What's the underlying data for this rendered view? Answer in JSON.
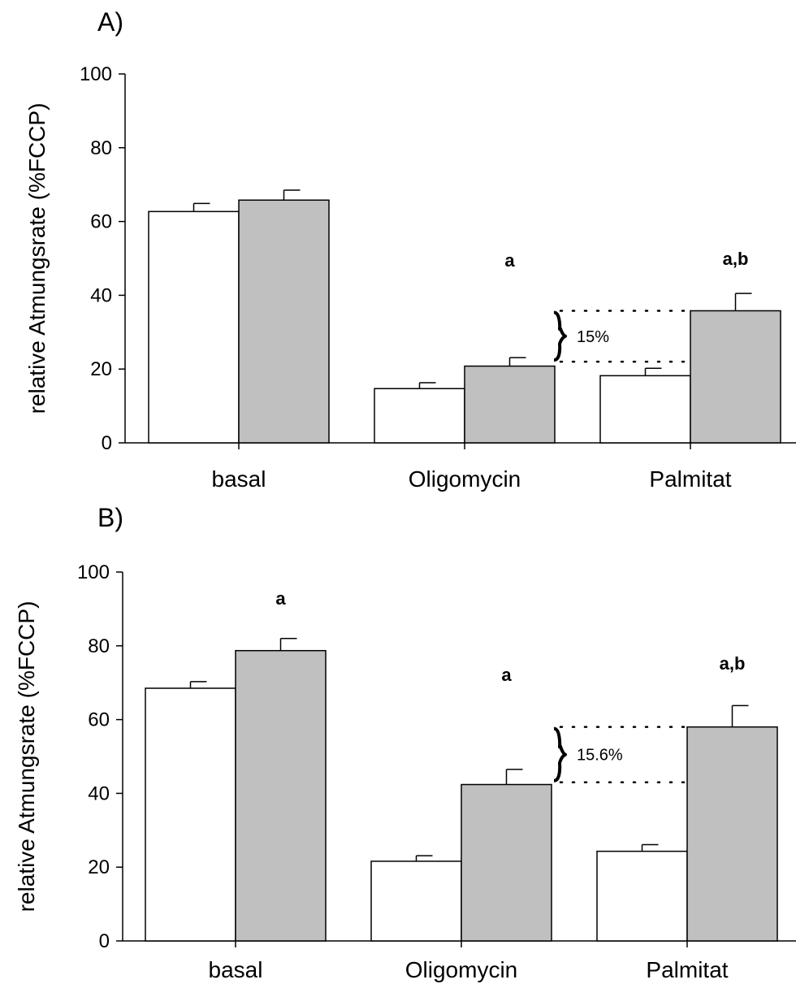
{
  "chart_data": [
    {
      "type": "bar",
      "panel_label": "A)",
      "categories": [
        "basal",
        "Oligomycin",
        "Palmitat"
      ],
      "ylabel": "relative Atmungsrate (%FCCP)",
      "ylim": [
        0,
        100
      ],
      "yticks": [
        "0",
        "20",
        "40",
        "60",
        "80",
        "100"
      ],
      "series": [
        {
          "color": "#ffffff",
          "values": [
            62.7,
            14.7,
            18.2
          ],
          "errors": [
            2.2,
            1.6,
            2.0
          ]
        },
        {
          "color": "#c0c0c0",
          "values": [
            65.8,
            20.8,
            35.8
          ],
          "errors": [
            2.7,
            2.3,
            4.7
          ]
        }
      ],
      "annotations": [
        {
          "category": "Oligomycin",
          "text": "a"
        },
        {
          "category": "Palmitat",
          "text": "a,b"
        }
      ],
      "difference_bracket": {
        "label": "15%",
        "from_value": 22.0,
        "to_value": 35.8
      }
    },
    {
      "type": "bar",
      "panel_label": "B)",
      "categories": [
        "basal",
        "Oligomycin",
        "Palmitat"
      ],
      "ylabel": "relative Atmungsrate (%FCCP)",
      "ylim": [
        0,
        100
      ],
      "yticks": [
        "0",
        "20",
        "40",
        "60",
        "80",
        "100"
      ],
      "series": [
        {
          "color": "#ffffff",
          "values": [
            68.5,
            21.6,
            24.3
          ],
          "errors": [
            1.8,
            1.5,
            1.8
          ]
        },
        {
          "color": "#c0c0c0",
          "values": [
            78.7,
            42.4,
            58.0
          ],
          "errors": [
            3.3,
            4.1,
            5.8
          ]
        }
      ],
      "annotations": [
        {
          "category": "basal",
          "text": "a"
        },
        {
          "category": "Oligomycin",
          "text": "a"
        },
        {
          "category": "Palmitat",
          "text": "a,b"
        }
      ],
      "difference_bracket": {
        "label": "15.6%",
        "from_value": 43.0,
        "to_value": 58.0
      }
    }
  ]
}
